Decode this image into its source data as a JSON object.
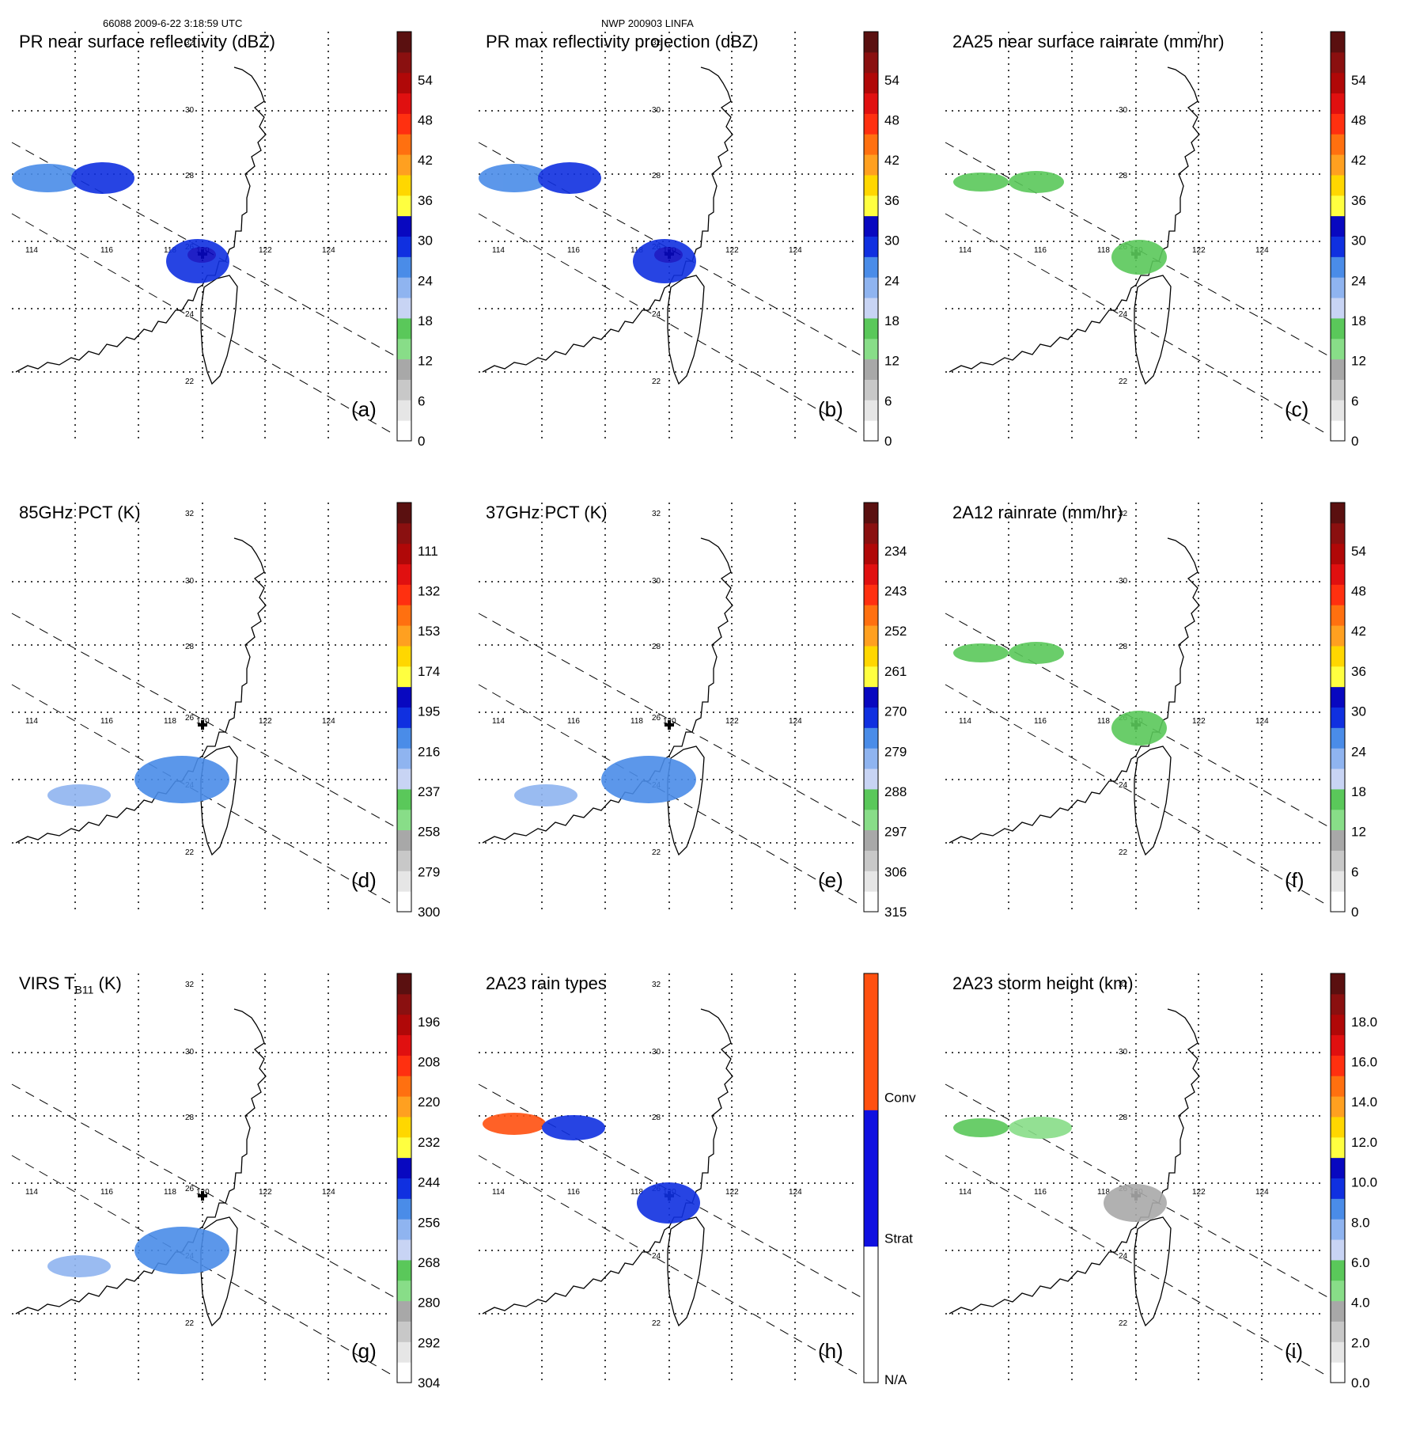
{
  "header": {
    "orbit_info": "66088 2009-6-22 3:18:59 UTC",
    "storm_info": "NWP 200903 LINFA"
  },
  "map": {
    "lon_labels": [
      "114",
      "116",
      "118",
      "120",
      "122",
      "124"
    ],
    "lat_labels": [
      "22",
      "24",
      "26",
      "28",
      "30",
      "32"
    ]
  },
  "colors": {
    "scale12": [
      "#ffffff",
      "#e6e6e6",
      "#c8c8c8",
      "#a8a8a8",
      "#88dd88",
      "#5ac85a",
      "#c8d4f4",
      "#8fb4f0",
      "#4a8ce8",
      "#1030e0",
      "#0808c0",
      "#ffff40",
      "#ffd700",
      "#ffa020",
      "#ff7010",
      "#ff3010",
      "#e01010",
      "#b00808",
      "#8a1010",
      "#5a1010"
    ],
    "raintype": [
      "#ffffff",
      "#1010e0",
      "#ff5010"
    ]
  },
  "panels": [
    {
      "id": "a",
      "title": "PR near surface reflectivity (dBZ)",
      "label": "(a)",
      "colorbar_ticks": [
        "0",
        "6",
        "12",
        "18",
        "24",
        "30",
        "36",
        "42",
        "48",
        "54"
      ],
      "scale": "dbz"
    },
    {
      "id": "b",
      "title": "PR max reflectivity projection (dBZ)",
      "label": "(b)",
      "colorbar_ticks": [
        "0",
        "6",
        "12",
        "18",
        "24",
        "30",
        "36",
        "42",
        "48",
        "54"
      ],
      "scale": "dbz"
    },
    {
      "id": "c",
      "title": "2A25 near surface rainrate (mm/hr)",
      "label": "(c)",
      "colorbar_ticks": [
        "0",
        "6",
        "12",
        "18",
        "24",
        "30",
        "36",
        "42",
        "48",
        "54"
      ],
      "scale": "rain"
    },
    {
      "id": "d",
      "title": "85GHz PCT (K)",
      "label": "(d)",
      "colorbar_ticks": [
        "300",
        "279",
        "258",
        "237",
        "216",
        "195",
        "174",
        "153",
        "132",
        "111"
      ],
      "scale": "pct"
    },
    {
      "id": "e",
      "title": "37GHz PCT (K)",
      "label": "(e)",
      "colorbar_ticks": [
        "315",
        "306",
        "297",
        "288",
        "279",
        "270",
        "261",
        "252",
        "243",
        "234"
      ],
      "scale": "pct"
    },
    {
      "id": "f",
      "title": "2A12 rainrate (mm/hr)",
      "label": "(f)",
      "colorbar_ticks": [
        "0",
        "6",
        "12",
        "18",
        "24",
        "30",
        "36",
        "42",
        "48",
        "54"
      ],
      "scale": "rain"
    },
    {
      "id": "g",
      "title_main": "VIRS T",
      "title_sub": "B11",
      "title_unit": "(K)",
      "label": "(g)",
      "colorbar_ticks": [
        "304",
        "292",
        "280",
        "268",
        "256",
        "244",
        "232",
        "220",
        "208",
        "196"
      ],
      "scale": "pct"
    },
    {
      "id": "h",
      "title": "2A23 rain types",
      "label": "(h)",
      "colorbar_ticks": [
        "N/A",
        "Strat",
        "Conv"
      ],
      "scale": "type"
    },
    {
      "id": "i",
      "title": "2A23 storm height (km)",
      "label": "(i)",
      "colorbar_ticks": [
        "0.0",
        "2.0",
        "4.0",
        "6.0",
        "8.0",
        "10.0",
        "12.0",
        "14.0",
        "16.0",
        "18.0"
      ],
      "scale": "height"
    }
  ],
  "chart_data": [
    {
      "type": "heatmap",
      "panel": "a",
      "title": "PR near surface reflectivity (dBZ)",
      "colorbar_range": [
        0,
        60
      ],
      "lon_range": [
        113.5,
        125
      ],
      "lat_range": [
        21,
        33
      ]
    },
    {
      "type": "heatmap",
      "panel": "b",
      "title": "PR max reflectivity projection (dBZ)",
      "colorbar_range": [
        0,
        60
      ],
      "lon_range": [
        113.5,
        125
      ],
      "lat_range": [
        21,
        33
      ]
    },
    {
      "type": "heatmap",
      "panel": "c",
      "title": "2A25 near surface rainrate (mm/hr)",
      "colorbar_range": [
        0,
        60
      ],
      "lon_range": [
        113.5,
        125
      ],
      "lat_range": [
        21,
        33
      ]
    },
    {
      "type": "heatmap",
      "panel": "d",
      "title": "85GHz PCT (K)",
      "colorbar_range": [
        300,
        90
      ],
      "lon_range": [
        113.5,
        125
      ],
      "lat_range": [
        21,
        33
      ]
    },
    {
      "type": "heatmap",
      "panel": "e",
      "title": "37GHz PCT (K)",
      "colorbar_range": [
        315,
        225
      ],
      "lon_range": [
        113.5,
        125
      ],
      "lat_range": [
        21,
        33
      ]
    },
    {
      "type": "heatmap",
      "panel": "f",
      "title": "2A12 rainrate (mm/hr)",
      "colorbar_range": [
        0,
        60
      ],
      "lon_range": [
        113.5,
        125
      ],
      "lat_range": [
        21,
        33
      ]
    },
    {
      "type": "heatmap",
      "panel": "g",
      "title": "VIRS TB11 (K)",
      "colorbar_range": [
        304,
        184
      ],
      "lon_range": [
        113.5,
        125
      ],
      "lat_range": [
        21,
        33
      ]
    },
    {
      "type": "heatmap",
      "panel": "h",
      "title": "2A23 rain types",
      "categories": [
        "N/A",
        "Strat",
        "Conv"
      ],
      "lon_range": [
        113.5,
        125
      ],
      "lat_range": [
        21,
        33
      ]
    },
    {
      "type": "heatmap",
      "panel": "i",
      "title": "2A23 storm height (km)",
      "colorbar_range": [
        0,
        20
      ],
      "lon_range": [
        113.5,
        125
      ],
      "lat_range": [
        21,
        33
      ]
    }
  ]
}
